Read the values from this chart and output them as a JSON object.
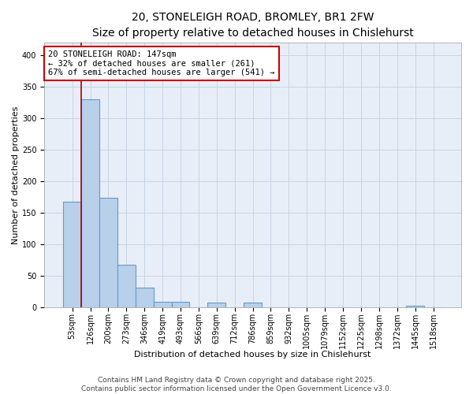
{
  "title_line1": "20, STONELEIGH ROAD, BROMLEY, BR1 2FW",
  "title_line2": "Size of property relative to detached houses in Chislehurst",
  "xlabel": "Distribution of detached houses by size in Chislehurst",
  "ylabel": "Number of detached properties",
  "categories": [
    "53sqm",
    "126sqm",
    "200sqm",
    "273sqm",
    "346sqm",
    "419sqm",
    "493sqm",
    "566sqm",
    "639sqm",
    "712sqm",
    "786sqm",
    "859sqm",
    "932sqm",
    "1005sqm",
    "1079sqm",
    "1152sqm",
    "1225sqm",
    "1298sqm",
    "1372sqm",
    "1445sqm",
    "1518sqm"
  ],
  "values": [
    168,
    330,
    174,
    68,
    32,
    9,
    9,
    0,
    8,
    0,
    8,
    0,
    0,
    0,
    0,
    0,
    0,
    0,
    0,
    3,
    0
  ],
  "bar_color": "#b8d0ea",
  "bar_edge_color": "#6699cc",
  "property_bin_index": 1,
  "red_line_color": "#aa0000",
  "annotation_text": "20 STONELEIGH ROAD: 147sqm\n← 32% of detached houses are smaller (261)\n67% of semi-detached houses are larger (541) →",
  "annotation_box_color": "#ffffff",
  "annotation_box_edge_color": "#cc0000",
  "ylim": [
    0,
    420
  ],
  "yticks": [
    0,
    50,
    100,
    150,
    200,
    250,
    300,
    350,
    400
  ],
  "grid_color": "#c8d4e4",
  "background_color": "#e8eef8",
  "footer_text": "Contains HM Land Registry data © Crown copyright and database right 2025.\nContains public sector information licensed under the Open Government Licence v3.0.",
  "title_fontsize": 10,
  "subtitle_fontsize": 9,
  "axis_label_fontsize": 8,
  "tick_fontsize": 7,
  "annotation_fontsize": 7.5,
  "footer_fontsize": 6.5
}
